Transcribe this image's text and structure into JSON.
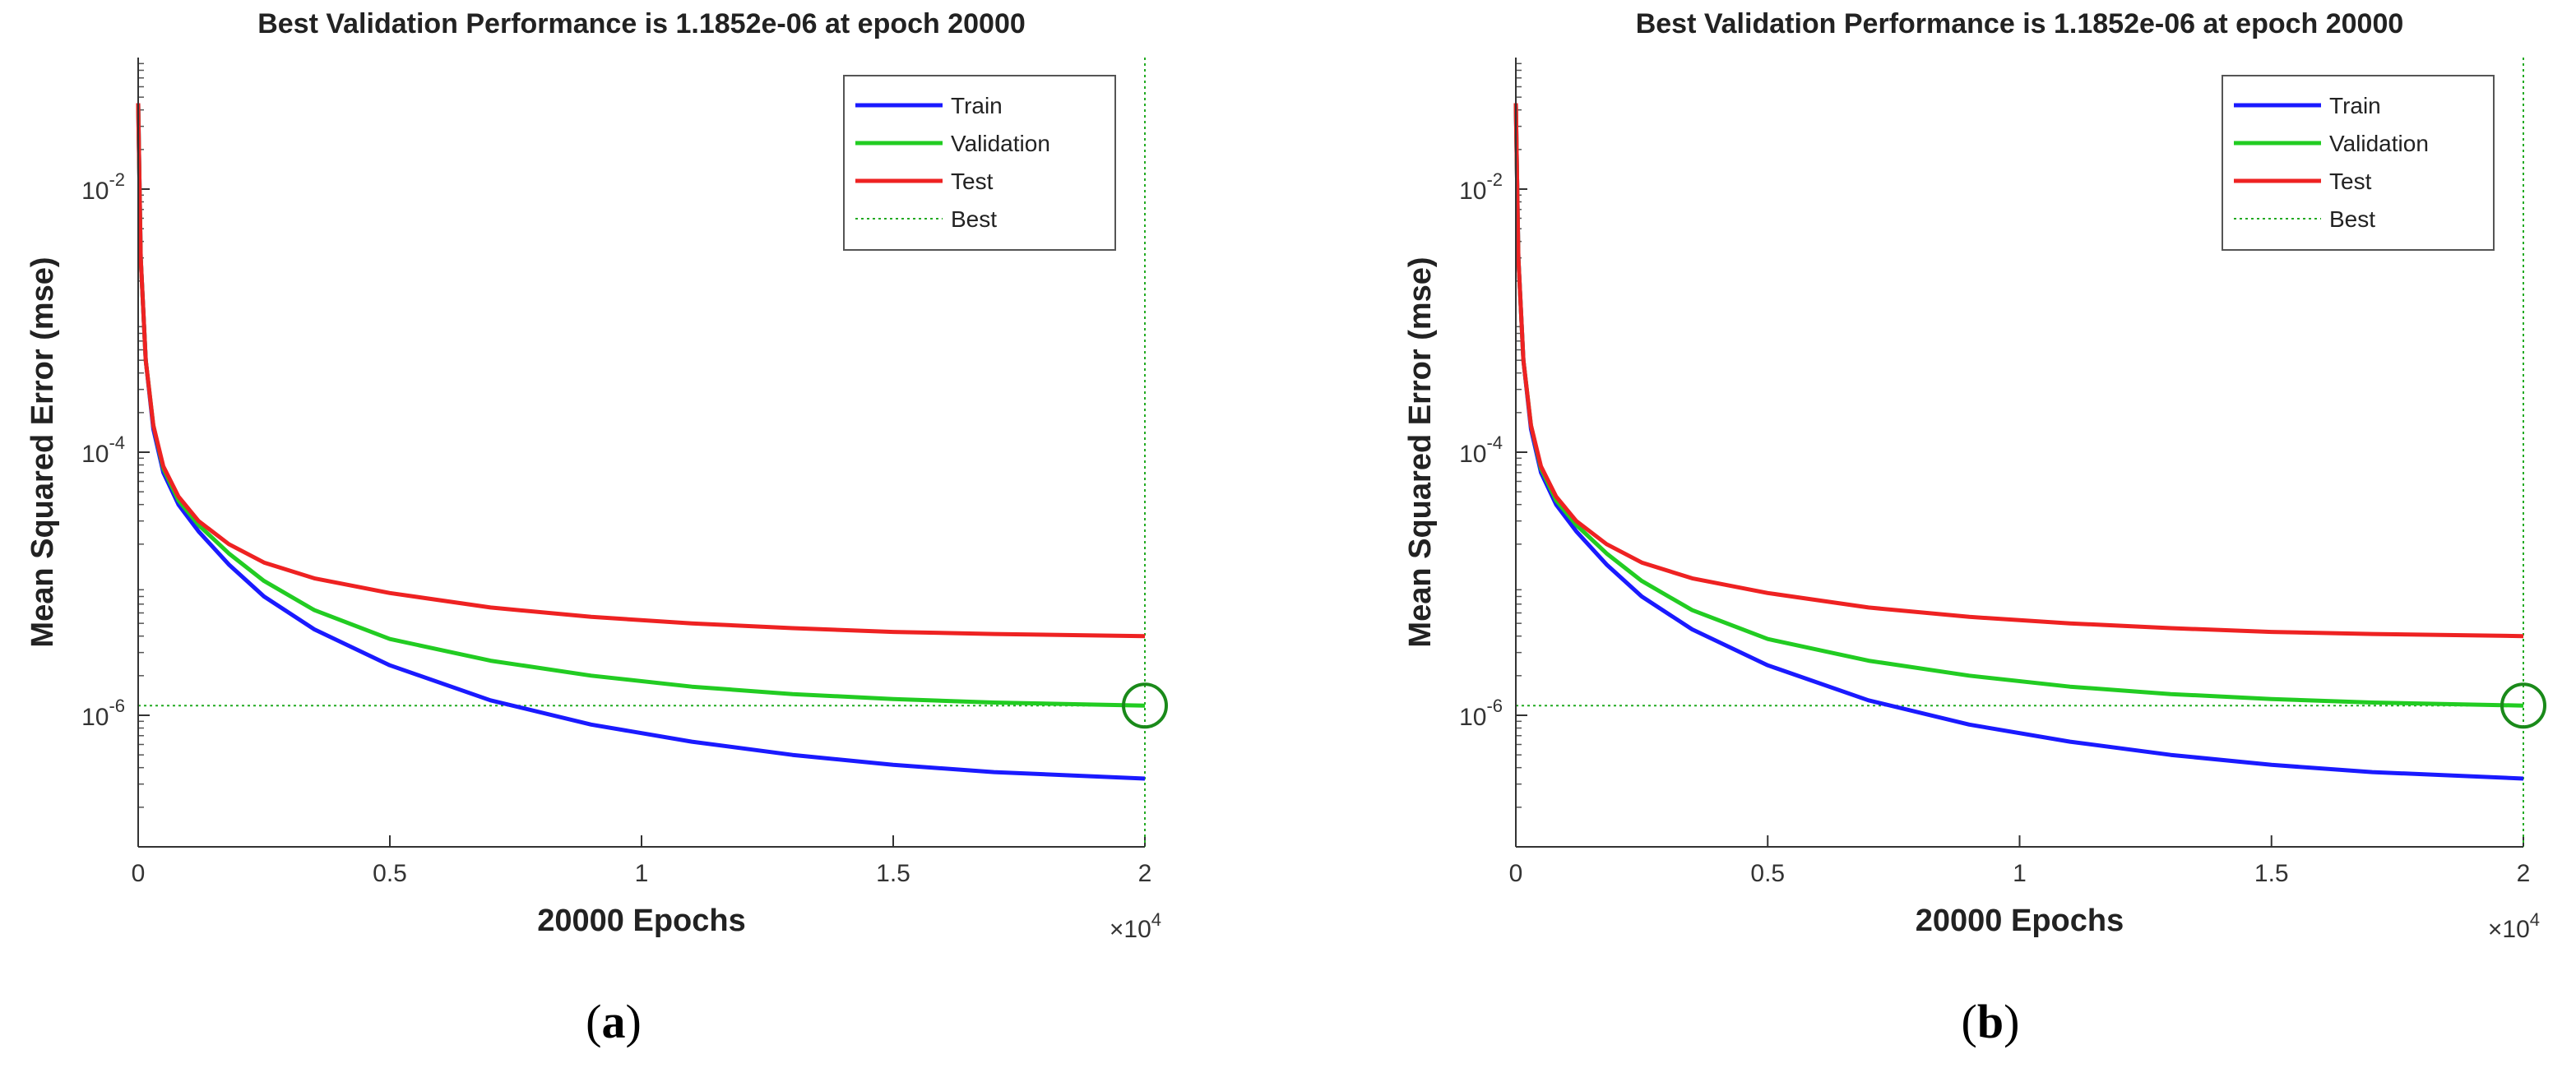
{
  "chart_data": [
    {
      "type": "line",
      "panel_label": "a",
      "title": "Best Validation Performance is 1.1852e-06 at epoch 20000",
      "xlabel": "20000 Epochs",
      "ylabel": "Mean Squared Error  (mse)",
      "x_multiplier": "×10^4",
      "x_multiplier_base": "×10",
      "x_multiplier_exp": "4",
      "y_scale": "log",
      "xlim": [
        0,
        20000
      ],
      "ylim": [
        1e-07,
        0.1
      ],
      "x_ticks": [
        0,
        5000,
        10000,
        15000,
        20000
      ],
      "x_tick_labels": [
        "0",
        "0.5",
        "1",
        "1.5",
        "2"
      ],
      "y_ticks": [
        1e-06,
        0.0001,
        0.01
      ],
      "y_tick_labels": [
        {
          "base": "10",
          "exp": "-6"
        },
        {
          "base": "10",
          "exp": "-4"
        },
        {
          "base": "10",
          "exp": "-2"
        }
      ],
      "legend_location": "top-right",
      "best_epoch": 20000,
      "best_value": 1.1852e-06,
      "series": [
        {
          "name": "Train",
          "color": "#1a1aff",
          "x": [
            0,
            50,
            150,
            300,
            500,
            800,
            1200,
            1800,
            2500,
            3500,
            5000,
            7000,
            9000,
            11000,
            13000,
            15000,
            17000,
            20000
          ],
          "values": [
            0.045,
            0.003,
            0.0005,
            0.00015,
            7e-05,
            4e-05,
            2.5e-05,
            1.4e-05,
            8e-06,
            4.5e-06,
            2.4e-06,
            1.3e-06,
            8.5e-07,
            6.3e-07,
            5e-07,
            4.2e-07,
            3.7e-07,
            3.3e-07
          ]
        },
        {
          "name": "Validation",
          "color": "#22cc22",
          "x": [
            0,
            50,
            150,
            300,
            500,
            800,
            1200,
            1800,
            2500,
            3500,
            5000,
            7000,
            9000,
            11000,
            13000,
            15000,
            17000,
            20000
          ],
          "values": [
            0.045,
            0.003,
            0.0005,
            0.00016,
            7.5e-05,
            4.3e-05,
            2.8e-05,
            1.7e-05,
            1.05e-05,
            6.3e-06,
            3.8e-06,
            2.6e-06,
            2e-06,
            1.65e-06,
            1.45e-06,
            1.33e-06,
            1.25e-06,
            1.1852e-06
          ]
        },
        {
          "name": "Test",
          "color": "#ee2222",
          "x": [
            0,
            50,
            150,
            300,
            500,
            800,
            1200,
            1800,
            2500,
            3500,
            5000,
            7000,
            9000,
            11000,
            13000,
            15000,
            17000,
            20000
          ],
          "values": [
            0.045,
            0.003,
            0.0005,
            0.00016,
            7.8e-05,
            4.6e-05,
            3e-05,
            2e-05,
            1.45e-05,
            1.1e-05,
            8.5e-06,
            6.6e-06,
            5.6e-06,
            5e-06,
            4.6e-06,
            4.3e-06,
            4.15e-06,
            4e-06
          ]
        }
      ],
      "best_legend_label": "Best",
      "best_color": "#22aa22"
    },
    {
      "type": "line",
      "panel_label": "b",
      "title": "Best Validation Performance is 1.1852e-06 at epoch 20000",
      "xlabel": "20000 Epochs",
      "ylabel": "Mean Squared Error  (mse)",
      "x_multiplier": "×10^4",
      "x_multiplier_base": "×10",
      "x_multiplier_exp": "4",
      "y_scale": "log",
      "xlim": [
        0,
        20000
      ],
      "ylim": [
        1e-07,
        0.1
      ],
      "x_ticks": [
        0,
        5000,
        10000,
        15000,
        20000
      ],
      "x_tick_labels": [
        "0",
        "0.5",
        "1",
        "1.5",
        "2"
      ],
      "y_ticks": [
        1e-06,
        0.0001,
        0.01
      ],
      "y_tick_labels": [
        {
          "base": "10",
          "exp": "-6"
        },
        {
          "base": "10",
          "exp": "-4"
        },
        {
          "base": "10",
          "exp": "-2"
        }
      ],
      "legend_location": "top-right",
      "best_epoch": 20000,
      "best_value": 1.1852e-06,
      "series": [
        {
          "name": "Train",
          "color": "#1a1aff",
          "x": [
            0,
            50,
            150,
            300,
            500,
            800,
            1200,
            1800,
            2500,
            3500,
            5000,
            7000,
            9000,
            11000,
            13000,
            15000,
            17000,
            20000
          ],
          "values": [
            0.045,
            0.003,
            0.0005,
            0.00015,
            7e-05,
            4e-05,
            2.5e-05,
            1.4e-05,
            8e-06,
            4.5e-06,
            2.4e-06,
            1.3e-06,
            8.5e-07,
            6.3e-07,
            5e-07,
            4.2e-07,
            3.7e-07,
            3.3e-07
          ]
        },
        {
          "name": "Validation",
          "color": "#22cc22",
          "x": [
            0,
            50,
            150,
            300,
            500,
            800,
            1200,
            1800,
            2500,
            3500,
            5000,
            7000,
            9000,
            11000,
            13000,
            15000,
            17000,
            20000
          ],
          "values": [
            0.045,
            0.003,
            0.0005,
            0.00016,
            7.5e-05,
            4.3e-05,
            2.8e-05,
            1.7e-05,
            1.05e-05,
            6.3e-06,
            3.8e-06,
            2.6e-06,
            2e-06,
            1.65e-06,
            1.45e-06,
            1.33e-06,
            1.25e-06,
            1.1852e-06
          ]
        },
        {
          "name": "Test",
          "color": "#ee2222",
          "x": [
            0,
            50,
            150,
            300,
            500,
            800,
            1200,
            1800,
            2500,
            3500,
            5000,
            7000,
            9000,
            11000,
            13000,
            15000,
            17000,
            20000
          ],
          "values": [
            0.045,
            0.003,
            0.0005,
            0.00016,
            7.8e-05,
            4.6e-05,
            3e-05,
            2e-05,
            1.45e-05,
            1.1e-05,
            8.5e-06,
            6.6e-06,
            5.6e-06,
            5e-06,
            4.6e-06,
            4.3e-06,
            4.15e-06,
            4e-06
          ]
        }
      ],
      "best_legend_label": "Best",
      "best_color": "#22aa22"
    }
  ]
}
